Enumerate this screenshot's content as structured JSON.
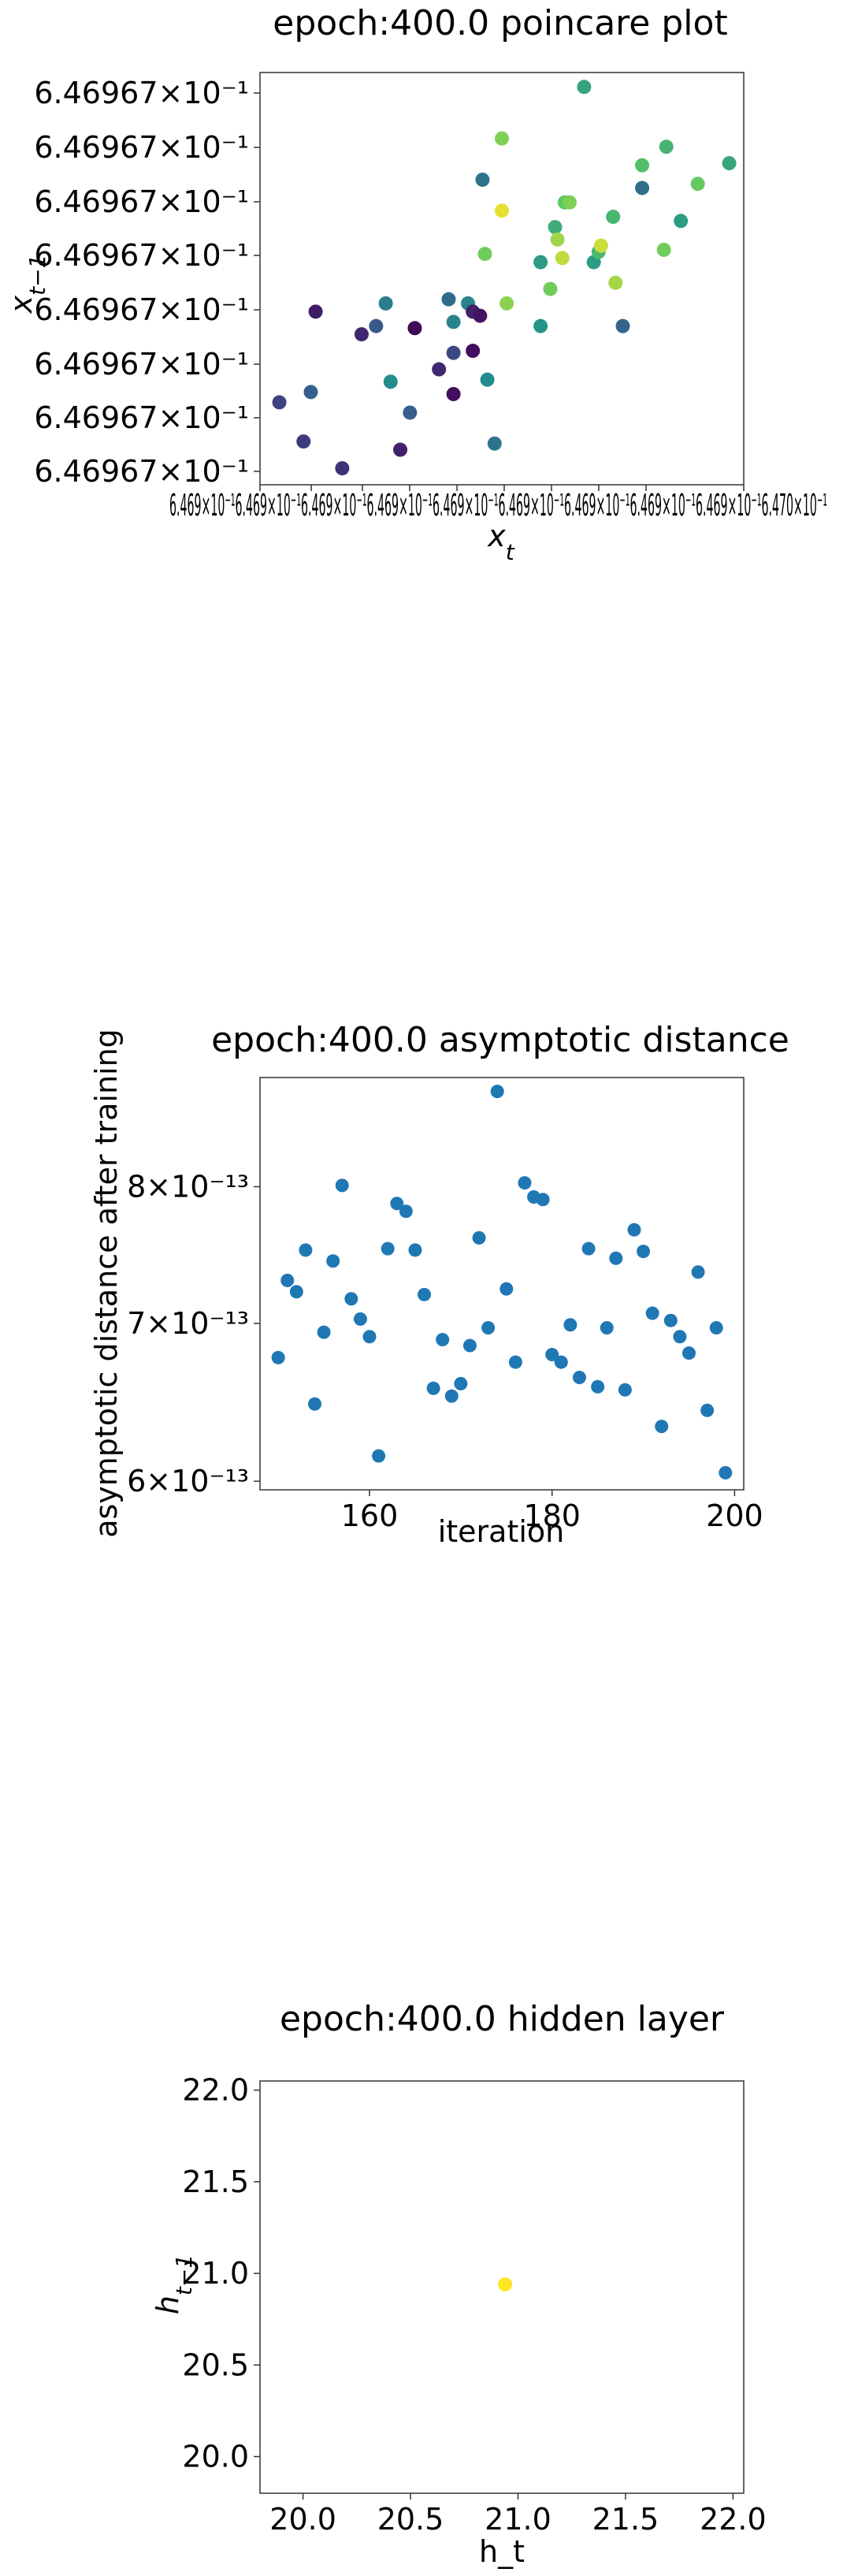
{
  "chart_data": [
    {
      "type": "scatter",
      "title": "epoch:400.0 poincare plot",
      "xlabel": "x_t",
      "ylabel": "x_{t−1}",
      "x_scale": "log",
      "y_scale": "log",
      "ytick_labels": [
        "6.46967×10⁻¹",
        "6.46967×10⁻¹",
        "6.46967×10⁻¹",
        "6.46967×10⁻¹",
        "6.46967×10⁻¹",
        "6.46967×10⁻¹",
        "6.46967×10⁻¹",
        "6.46967×10⁻¹"
      ],
      "xtick_overlap_text": "6.469×10⁻¹6.469×10⁻¹6.469×10⁻¹6.469×10⁻¹6.469×10⁻¹6.469×10⁻¹6.469×10⁻¹6.469×10⁻¹6.469×10⁻¹6.470×10⁻¹",
      "xlim": [
        0,
        1
      ],
      "ylim": [
        0,
        1
      ],
      "color_scale": "viridis (early iterations dark purple, late iterations yellow)",
      "points": [
        {
          "x": 0.04,
          "y": 0.2,
          "c": 0.2
        },
        {
          "x": 0.09,
          "y": 0.105,
          "c": 0.18
        },
        {
          "x": 0.105,
          "y": 0.225,
          "c": 0.3
        },
        {
          "x": 0.115,
          "y": 0.42,
          "c": 0.08
        },
        {
          "x": 0.17,
          "y": 0.04,
          "c": 0.15
        },
        {
          "x": 0.21,
          "y": 0.365,
          "c": 0.12
        },
        {
          "x": 0.24,
          "y": 0.385,
          "c": 0.28
        },
        {
          "x": 0.26,
          "y": 0.44,
          "c": 0.42
        },
        {
          "x": 0.27,
          "y": 0.25,
          "c": 0.48
        },
        {
          "x": 0.29,
          "y": 0.085,
          "c": 0.1
        },
        {
          "x": 0.31,
          "y": 0.175,
          "c": 0.3
        },
        {
          "x": 0.32,
          "y": 0.38,
          "c": 0.02
        },
        {
          "x": 0.37,
          "y": 0.28,
          "c": 0.12
        },
        {
          "x": 0.39,
          "y": 0.45,
          "c": 0.35
        },
        {
          "x": 0.4,
          "y": 0.32,
          "c": 0.22
        },
        {
          "x": 0.4,
          "y": 0.22,
          "c": 0.04
        },
        {
          "x": 0.4,
          "y": 0.395,
          "c": 0.45
        },
        {
          "x": 0.43,
          "y": 0.44,
          "c": 0.45
        },
        {
          "x": 0.44,
          "y": 0.42,
          "c": 0.1
        },
        {
          "x": 0.44,
          "y": 0.325,
          "c": 0.04
        },
        {
          "x": 0.455,
          "y": 0.41,
          "c": 0.06
        },
        {
          "x": 0.46,
          "y": 0.74,
          "c": 0.38
        },
        {
          "x": 0.465,
          "y": 0.56,
          "c": 0.78
        },
        {
          "x": 0.47,
          "y": 0.255,
          "c": 0.48
        },
        {
          "x": 0.485,
          "y": 0.1,
          "c": 0.38
        },
        {
          "x": 0.5,
          "y": 0.665,
          "c": 0.96
        },
        {
          "x": 0.5,
          "y": 0.84,
          "c": 0.8
        },
        {
          "x": 0.51,
          "y": 0.44,
          "c": 0.82
        },
        {
          "x": 0.58,
          "y": 0.54,
          "c": 0.55
        },
        {
          "x": 0.58,
          "y": 0.385,
          "c": 0.52
        },
        {
          "x": 0.6,
          "y": 0.475,
          "c": 0.78
        },
        {
          "x": 0.61,
          "y": 0.625,
          "c": 0.62
        },
        {
          "x": 0.615,
          "y": 0.595,
          "c": 0.85
        },
        {
          "x": 0.625,
          "y": 0.55,
          "c": 0.9
        },
        {
          "x": 0.63,
          "y": 0.685,
          "c": 0.75
        },
        {
          "x": 0.64,
          "y": 0.685,
          "c": 0.8
        },
        {
          "x": 0.67,
          "y": 0.965,
          "c": 0.58
        },
        {
          "x": 0.69,
          "y": 0.54,
          "c": 0.55
        },
        {
          "x": 0.7,
          "y": 0.565,
          "c": 0.68
        },
        {
          "x": 0.705,
          "y": 0.58,
          "c": 0.92
        },
        {
          "x": 0.73,
          "y": 0.65,
          "c": 0.66
        },
        {
          "x": 0.735,
          "y": 0.49,
          "c": 0.86
        },
        {
          "x": 0.75,
          "y": 0.385,
          "c": 0.32
        },
        {
          "x": 0.79,
          "y": 0.72,
          "c": 0.36
        },
        {
          "x": 0.79,
          "y": 0.775,
          "c": 0.7
        },
        {
          "x": 0.835,
          "y": 0.57,
          "c": 0.78
        },
        {
          "x": 0.84,
          "y": 0.82,
          "c": 0.65
        },
        {
          "x": 0.87,
          "y": 0.64,
          "c": 0.55
        },
        {
          "x": 0.905,
          "y": 0.73,
          "c": 0.76
        },
        {
          "x": 0.97,
          "y": 0.78,
          "c": 0.6
        }
      ]
    },
    {
      "type": "scatter",
      "title": "epoch:400.0 asymptotic distance",
      "xlabel": "iteration",
      "ylabel": "asymptotic distance after training",
      "y_scale": "log",
      "xlim": [
        148,
        201
      ],
      "ylim": [
        5.95e-13,
        8.9e-13
      ],
      "xticks": [
        {
          "value": 160,
          "label": "160"
        },
        {
          "value": 180,
          "label": "180"
        },
        {
          "value": 200,
          "label": "200"
        }
      ],
      "yticks": [
        {
          "value": 6e-13,
          "label": "6×10⁻¹³"
        },
        {
          "value": 7e-13,
          "label": "7×10⁻¹³"
        },
        {
          "value": 8e-13,
          "label": "8×10⁻¹³"
        }
      ],
      "x": [
        150,
        151,
        152,
        153,
        154,
        155,
        156,
        157,
        158,
        159,
        160,
        161,
        162,
        163,
        164,
        165,
        166,
        167,
        168,
        169,
        170,
        171,
        172,
        173,
        174,
        175,
        176,
        177,
        178,
        179,
        180,
        181,
        182,
        183,
        184,
        185,
        186,
        187,
        188,
        189,
        190,
        191,
        192,
        193,
        194,
        195,
        196,
        197,
        198,
        199
      ],
      "y": [
        6.77e-13,
        7.3e-13,
        7.22e-13,
        7.52e-13,
        6.47e-13,
        6.94e-13,
        7.44e-13,
        8.01e-13,
        7.17e-13,
        7.03e-13,
        6.91e-13,
        6.15e-13,
        7.53e-13,
        7.87e-13,
        7.81e-13,
        7.52e-13,
        7.2e-13,
        6.57e-13,
        6.89e-13,
        6.52e-13,
        6.6e-13,
        6.85e-13,
        7.61e-13,
        6.97e-13,
        8.78e-13,
        7.24e-13,
        6.74e-13,
        8.03e-13,
        7.92e-13,
        7.9e-13,
        6.79e-13,
        6.74e-13,
        6.99e-13,
        6.64e-13,
        7.53e-13,
        6.58e-13,
        6.97e-13,
        7.46e-13,
        6.56e-13,
        7.67e-13,
        7.51e-13,
        7.07e-13,
        6.33e-13,
        7.02e-13,
        6.91e-13,
        6.8e-13,
        7.36e-13,
        6.43e-13,
        6.97e-13,
        6.05e-13
      ]
    },
    {
      "type": "scatter",
      "title": "epoch:400.0 hidden layer",
      "xlabel": "h_t",
      "ylabel": "h_{t−1}",
      "xlim": [
        19.8,
        22.05
      ],
      "ylim": [
        19.8,
        22.05
      ],
      "xticks": [
        {
          "value": 20.0,
          "label": "20.0"
        },
        {
          "value": 20.5,
          "label": "20.5"
        },
        {
          "value": 21.0,
          "label": "21.0"
        },
        {
          "value": 21.5,
          "label": "21.5"
        },
        {
          "value": 22.0,
          "label": "22.0"
        }
      ],
      "yticks": [
        {
          "value": 20.0,
          "label": "20.0"
        },
        {
          "value": 20.5,
          "label": "20.5"
        },
        {
          "value": 21.0,
          "label": "21.0"
        },
        {
          "value": 21.5,
          "label": "21.5"
        },
        {
          "value": 22.0,
          "label": "22.0"
        }
      ],
      "points": [
        {
          "x": 20.94,
          "y": 20.94
        }
      ],
      "color": "#fde725"
    }
  ]
}
